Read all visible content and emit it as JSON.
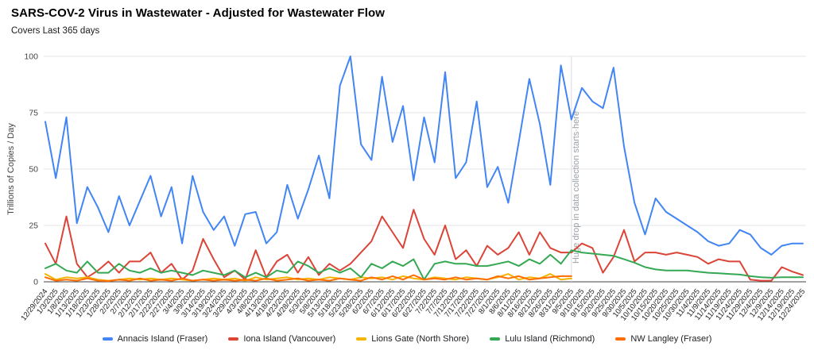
{
  "title": "SARS-COV-2 Virus in Wastewater - Adjusted for Wastewater Flow",
  "subtitle": "Covers Last 365 days",
  "chart_data": {
    "type": "line",
    "title": "SARS-COV-2 Virus in Wastewater - Adjusted for Wastewater Flow",
    "subtitle": "Covers Last 365 days",
    "xlabel": "",
    "ylabel": "Trillions of Copies / Day",
    "ylim": [
      0,
      100
    ],
    "y_ticks": [
      0,
      25,
      50,
      75,
      100
    ],
    "grid": "horizontal gridlines at 0/25/50/75/100",
    "legend_position": "bottom",
    "annotation": {
      "text": "Huge drop in data collection starts·here",
      "x_label": "9/5/2025",
      "color": "#9aa0a6"
    },
    "x_labels": [
      "12/29/2024",
      "1/3/2025",
      "1/8/2025",
      "1/13/2025",
      "1/18/2025",
      "1/23/2025",
      "1/28/2025",
      "2/2/2025",
      "2/7/2025",
      "2/12/2025",
      "2/17/2025",
      "2/22/2025",
      "2/27/2025",
      "3/4/2025",
      "3/9/2025",
      "3/14/2025",
      "3/19/2025",
      "3/24/2025",
      "3/29/2025",
      "4/3/2025",
      "4/8/2025",
      "4/13/2025",
      "4/18/2025",
      "4/23/2025",
      "4/28/2025",
      "5/3/2025",
      "5/8/2025",
      "5/13/2025",
      "5/18/2025",
      "5/23/2025",
      "5/28/2025",
      "6/2/2025",
      "6/7/2025",
      "6/12/2025",
      "6/17/2025",
      "6/22/2025",
      "6/27/2025",
      "7/2/2025",
      "7/7/2025",
      "7/12/2025",
      "7/17/2025",
      "7/22/2025",
      "7/27/2025",
      "8/1/2025",
      "8/6/2025",
      "8/11/2025",
      "8/16/2025",
      "8/21/2025",
      "8/26/2025",
      "8/31/2025",
      "9/5/2025",
      "9/10/2025",
      "9/15/2025",
      "9/20/2025",
      "9/25/2025",
      "9/30/2025",
      "10/5/2025",
      "10/10/2025",
      "10/15/2025",
      "10/20/2025",
      "10/25/2025",
      "10/30/2025",
      "11/4/2025",
      "11/9/2025",
      "11/14/2025",
      "11/19/2025",
      "11/24/2025",
      "11/29/2025",
      "12/4/2025",
      "12/9/2025",
      "12/14/2025",
      "12/19/2025",
      "12/24/2025"
    ],
    "series": [
      {
        "name": "Annacis Island (Fraser)",
        "id": "annacis-island",
        "color": "#4285F4",
        "values": [
          71,
          46,
          73,
          26,
          42,
          33,
          22,
          38,
          25,
          36,
          47,
          29,
          42,
          17,
          47,
          31,
          23,
          29,
          16,
          30,
          31,
          17,
          22,
          43,
          28,
          41,
          56,
          37,
          87,
          100,
          61,
          54,
          91,
          62,
          78,
          45,
          73,
          53,
          93,
          46,
          53,
          80,
          42,
          51,
          35,
          62,
          90,
          70,
          43,
          96,
          72,
          86,
          80,
          77,
          95,
          60,
          35,
          21,
          37,
          31,
          28,
          25,
          22,
          18,
          16,
          17,
          23,
          21,
          15,
          12,
          16,
          17,
          17
        ]
      },
      {
        "name": "Iona Island (Vancouver)",
        "id": "iona-island",
        "color": "#DB4437",
        "values": [
          17,
          8,
          29,
          8,
          2,
          5,
          9,
          4,
          9,
          9,
          13,
          4,
          8,
          1,
          5,
          19,
          10,
          2,
          5,
          1,
          14,
          2,
          9,
          12,
          4,
          11,
          3,
          8,
          5,
          8,
          13,
          18,
          29,
          22,
          15,
          32,
          19,
          12,
          25,
          10,
          14,
          7,
          16,
          12,
          15,
          22,
          12,
          22,
          15,
          13,
          13,
          17,
          15,
          4,
          11,
          23,
          9,
          13,
          13,
          12,
          13,
          12,
          11,
          8,
          10,
          9,
          9,
          1,
          0.5,
          0.5,
          6.5,
          4.5,
          3
        ]
      },
      {
        "name": "Lions Gate (North Shore)",
        "id": "lions-gate",
        "color": "#F4B400",
        "values": [
          3.5,
          1,
          2,
          1.5,
          2,
          1,
          0.5,
          1,
          1.5,
          1,
          1.5,
          1,
          1.5,
          1,
          0.5,
          1,
          1.5,
          1,
          1.5,
          0.5,
          2,
          1,
          1.5,
          2,
          1,
          1.5,
          1,
          2,
          1.5,
          1,
          2,
          1.5,
          2,
          1,
          2.5,
          1.5,
          1,
          2,
          1.5,
          1,
          2,
          1.5,
          1,
          2,
          3.5,
          1,
          2,
          1.5,
          3.5,
          1,
          1.5
        ]
      },
      {
        "name": "Lulu Island (Richmond)",
        "id": "lulu-island",
        "color": "#34A853",
        "values": [
          6,
          8,
          5,
          4,
          9,
          4,
          4,
          8,
          5,
          4,
          6,
          4,
          5,
          4,
          3,
          5,
          4,
          3,
          5,
          2,
          4,
          2,
          5,
          4,
          9,
          7,
          4,
          6,
          4,
          6,
          2,
          8,
          6,
          9,
          7,
          10,
          1,
          8,
          9,
          8,
          8,
          7,
          7,
          8,
          9,
          7,
          10,
          8,
          12,
          8,
          14,
          13,
          12.5,
          12,
          11.5,
          10,
          8.5,
          6.5,
          5.5,
          5,
          5,
          5,
          4.5,
          4,
          3.8,
          3.5,
          3.2,
          2.5,
          2,
          1.8,
          2,
          2,
          2
        ]
      },
      {
        "name": "NW Langley (Fraser)",
        "id": "nw-langley",
        "color": "#FF6D01",
        "values": [
          2,
          0.5,
          1,
          0.5,
          1.5,
          0.5,
          0.3,
          1,
          0.5,
          1.5,
          0.5,
          1,
          0.5,
          1.5,
          0.5,
          1,
          0.5,
          1,
          0.5,
          1,
          0.5,
          1.5,
          0.5,
          1,
          1.5,
          0.5,
          1,
          0.5,
          1.5,
          1,
          0.5,
          2,
          1,
          2.5,
          1,
          3,
          1,
          1.5,
          1,
          2,
          1,
          1.5,
          1,
          2.5,
          1.5,
          2.5,
          1,
          1.5,
          2,
          2.5,
          2.5
        ]
      }
    ]
  }
}
